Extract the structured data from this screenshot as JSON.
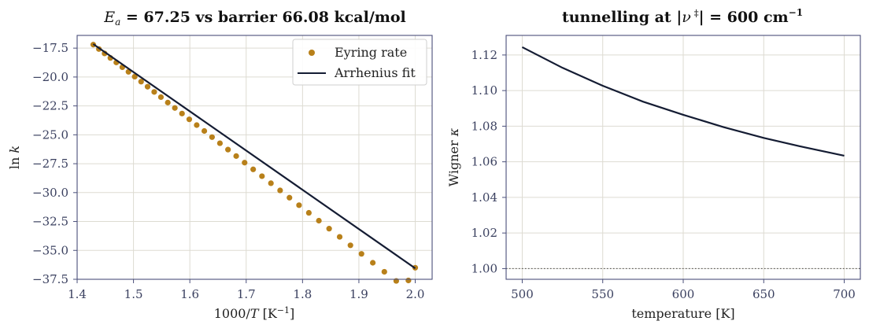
{
  "chart_data": [
    {
      "type": "scatter",
      "title_prefix": "E",
      "title_sub": "a",
      "title_rest": " = 67.25 vs barrier 66.08 kcal/mol",
      "xlabel_prefix": "1000/",
      "xlabel_var": "T",
      "xlabel_unit": "  [K",
      "xlabel_exp": "−1",
      "xlabel_close": "]",
      "ylabel_func": "ln",
      "ylabel_var": "k",
      "xlim": [
        1.4,
        2.03
      ],
      "ylim": [
        -37.5,
        -16.4
      ],
      "xticks": [
        "1.4",
        "1.5",
        "1.6",
        "1.7",
        "1.8",
        "1.9",
        "2.0"
      ],
      "yticks": [
        "−37.5",
        "−35.0",
        "−32.5",
        "−30.0",
        "−27.5",
        "−25.0",
        "−22.5",
        "−20.0",
        "−17.5"
      ],
      "grid": true,
      "legend_position": "top-right",
      "series": [
        {
          "name": "Eyring rate",
          "kind": "points",
          "color": "#b8801a",
          "x": [
            1.4286,
            1.4386,
            1.4487,
            1.459,
            1.4695,
            1.4802,
            1.4911,
            1.5022,
            1.5135,
            1.525,
            1.5368,
            1.5487,
            1.5609,
            1.5734,
            1.5861,
            1.599,
            1.6122,
            1.6257,
            1.6394,
            1.6534,
            1.6677,
            1.6823,
            1.6972,
            1.7124,
            1.728,
            1.7439,
            1.7602,
            1.7768,
            1.7938,
            1.8112,
            1.829,
            1.8472,
            1.8659,
            1.885,
            1.9046,
            1.9247,
            1.9452,
            1.9663,
            1.9879,
            2.0
          ],
          "y": [
            -17.2,
            -17.58,
            -17.96,
            -18.35,
            -18.74,
            -19.15,
            -19.55,
            -19.97,
            -20.4,
            -20.84,
            -21.29,
            -21.74,
            -22.21,
            -22.68,
            -23.16,
            -23.66,
            -24.16,
            -24.67,
            -25.2,
            -25.73,
            -26.28,
            -26.84,
            -27.41,
            -27.99,
            -28.58,
            -29.19,
            -29.81,
            -30.44,
            -31.09,
            -31.75,
            -32.43,
            -33.12,
            -33.83,
            -34.56,
            -35.3,
            -36.07,
            -36.85,
            -37.64,
            -37.6,
            -36.5
          ]
        },
        {
          "name": "Arrhenius fit",
          "kind": "line",
          "color": "#141c33",
          "x": [
            1.4286,
            2.0
          ],
          "y": [
            -17.15,
            -36.55
          ]
        }
      ]
    },
    {
      "type": "line",
      "title_main": "tunnelling at |",
      "title_var": "ν",
      "title_sup": " ‡",
      "title_end": "| = 600 cm",
      "title_exp": "−1",
      "xlabel": "temperature  [K]",
      "ylabel_text": "Wigner ",
      "ylabel_var": "κ",
      "xlim": [
        490,
        710
      ],
      "ylim": [
        0.994,
        1.131
      ],
      "xticks": [
        "500",
        "550",
        "600",
        "650",
        "700"
      ],
      "yticks": [
        "1.00",
        "1.02",
        "1.04",
        "1.06",
        "1.08",
        "1.10",
        "1.12"
      ],
      "grid": true,
      "reference_line_y": 1.0,
      "series": [
        {
          "kind": "line",
          "color": "#141c33",
          "x": [
            500,
            525,
            550,
            575,
            600,
            625,
            650,
            675,
            700
          ],
          "y": [
            1.1244,
            1.1128,
            1.1027,
            1.0938,
            1.0864,
            1.0795,
            1.0734,
            1.0682,
            1.0634
          ]
        }
      ]
    }
  ]
}
